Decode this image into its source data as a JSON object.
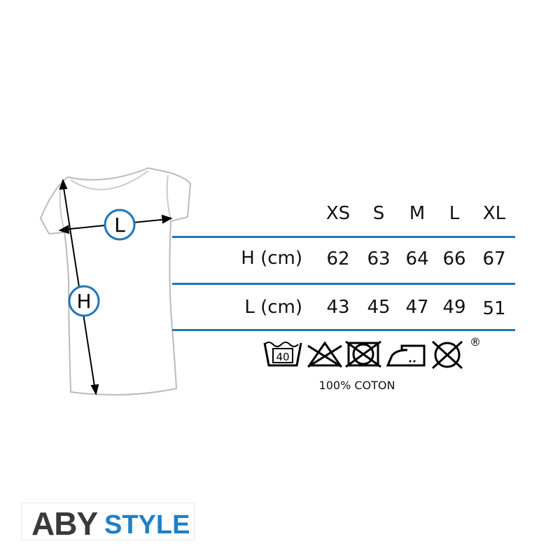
{
  "diagram": {
    "height_marker": "H",
    "width_marker": "L"
  },
  "size_table": {
    "columns": [
      "XS",
      "S",
      "M",
      "L",
      "XL"
    ],
    "rows": [
      {
        "label": "H (cm)",
        "values": [
          "62",
          "63",
          "64",
          "66",
          "67"
        ]
      },
      {
        "label": "L (cm)",
        "values": [
          "43",
          "45",
          "47",
          "49",
          "51"
        ]
      }
    ]
  },
  "care": {
    "icons": [
      "wash-40-icon",
      "no-bleach-icon",
      "no-tumble-dry-icon",
      "iron-medium-icon",
      "no-dry-clean-icon"
    ],
    "wash_temp": "40",
    "registered": "®",
    "fabric": "100% COTON"
  },
  "logo": {
    "part1": "ABY",
    "part2": "STYLE"
  },
  "colors": {
    "accent": "#1f77b8",
    "logo_dark": "#3a3a3a",
    "logo_blue": "#1f80c8"
  }
}
